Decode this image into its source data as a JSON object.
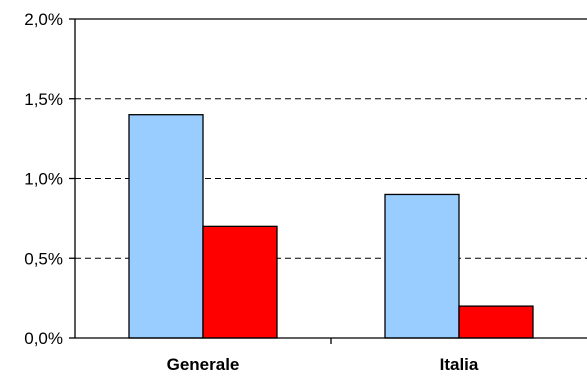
{
  "chart_data": {
    "type": "bar",
    "categories": [
      "Generale",
      "Italia"
    ],
    "series": [
      {
        "values": [
          1.4,
          0.9
        ],
        "color": "#99ccff"
      },
      {
        "values": [
          0.7,
          0.2
        ],
        "color": "#ff0000"
      }
    ],
    "ylim": [
      0,
      2.0
    ],
    "yticks": [
      0.0,
      0.5,
      1.0,
      1.5,
      2.0
    ],
    "ytick_labels": [
      "0,0%",
      "0,5%",
      "1,0%",
      "1,5%",
      "2,0%"
    ],
    "grid": "horizontal dashed",
    "legend": "none",
    "title": "",
    "xlabel": "",
    "ylabel": ""
  }
}
